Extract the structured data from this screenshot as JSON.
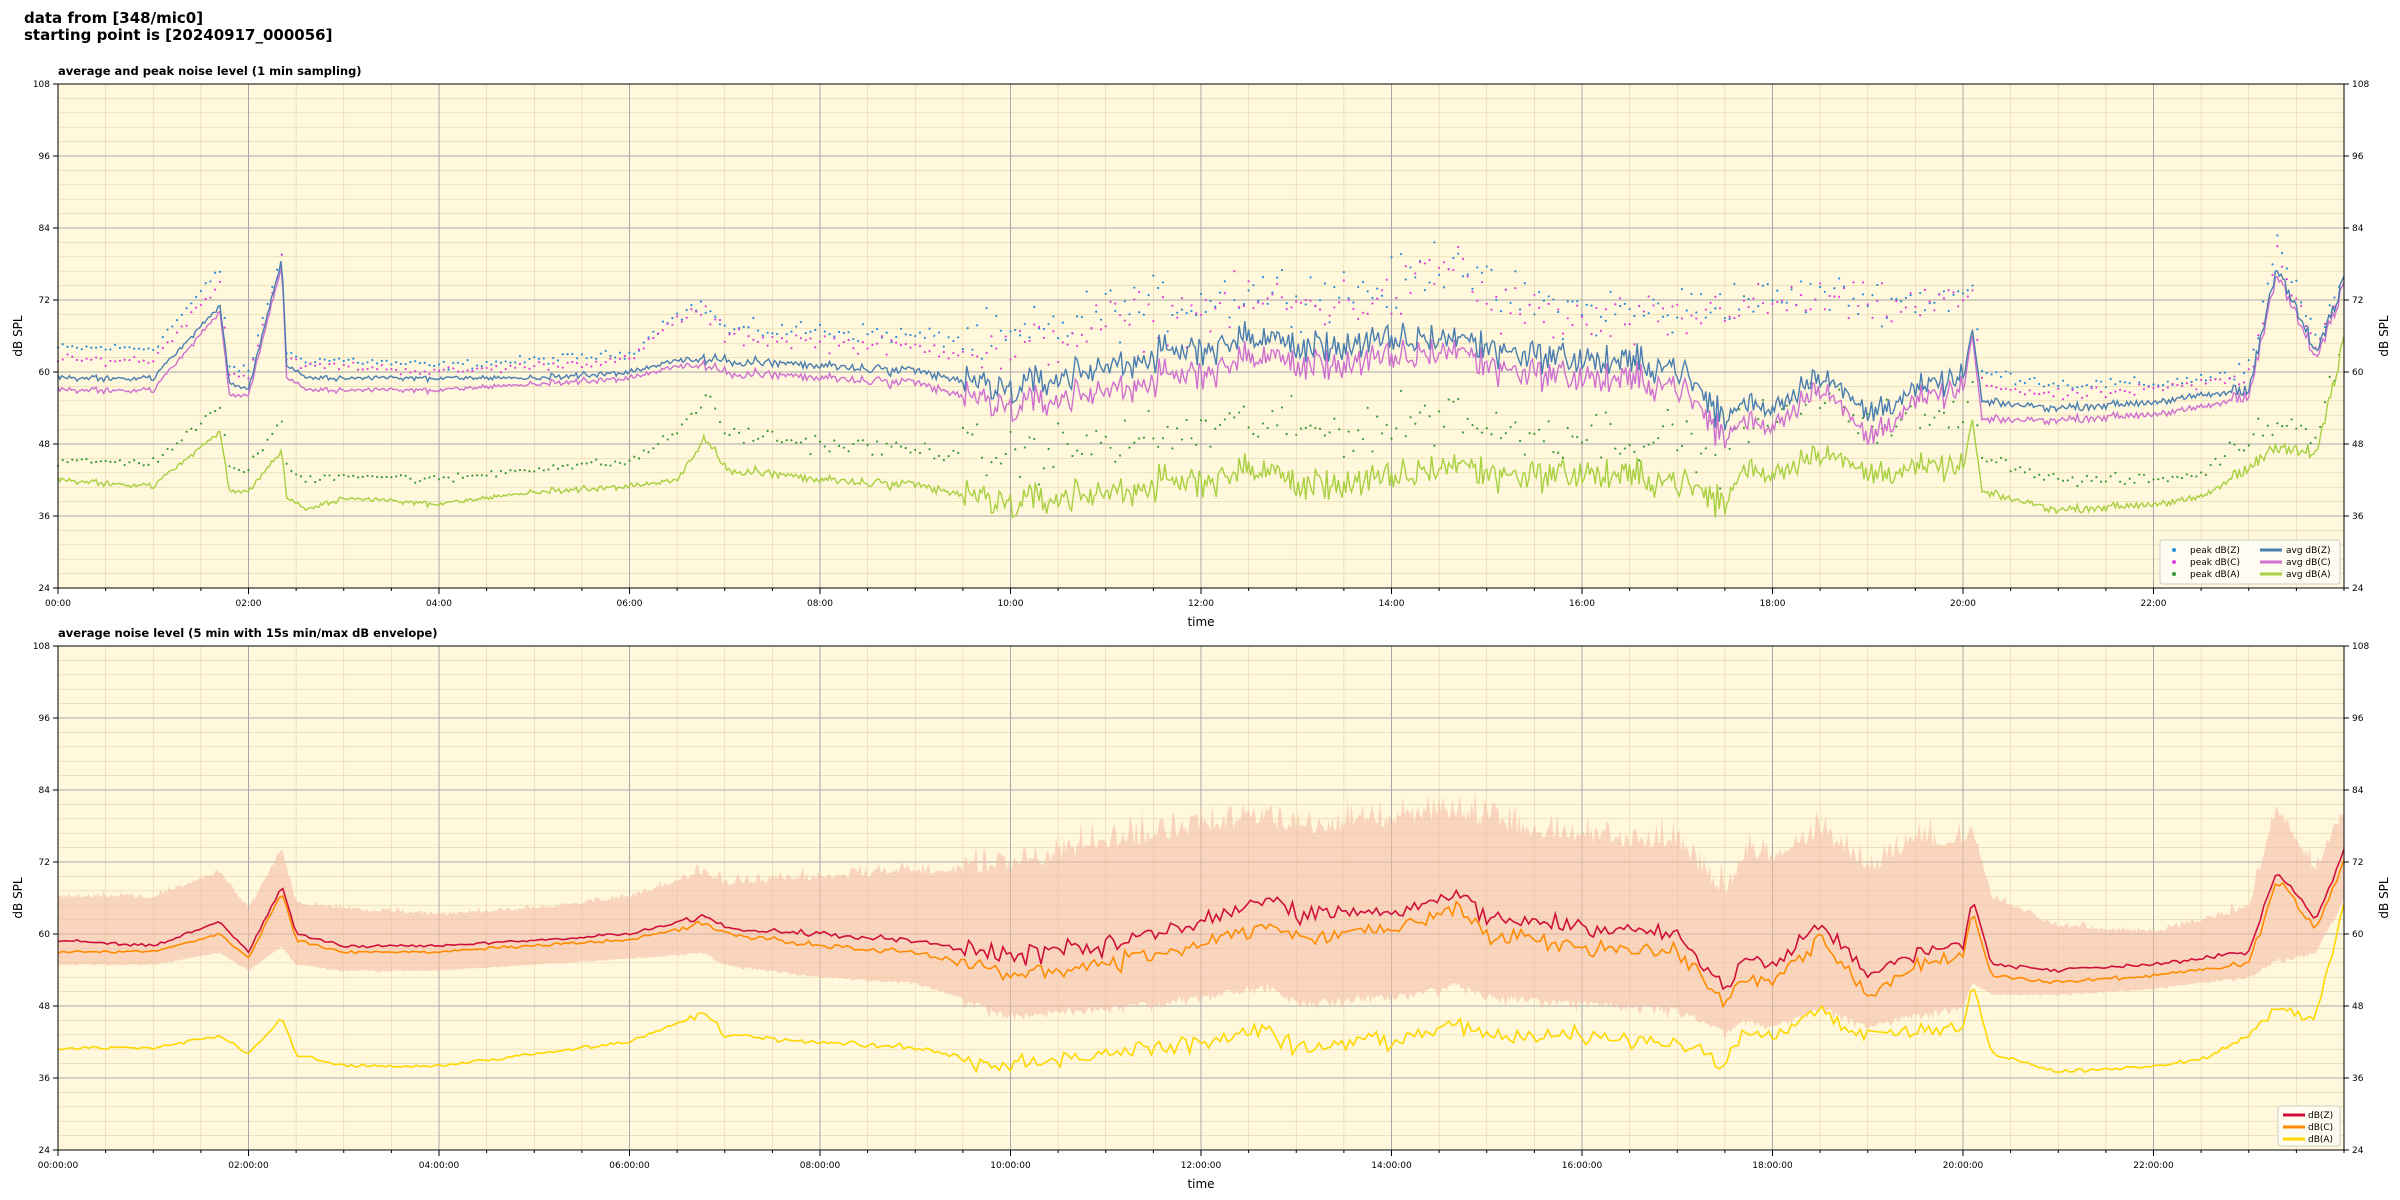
{
  "header": {
    "line1": "data from [348/mic0]",
    "line2": "starting point is [20240917_000056]"
  },
  "colors": {
    "background": "#fff8dc",
    "peak_z": "#2b8cd6",
    "peak_c": "#e040d8",
    "peak_a": "#3a9a3a",
    "avg_z": "#4a7eb0",
    "avg_c": "#d070d0",
    "avg_a": "#a8d040",
    "env_fill": "#f6b8a4",
    "db_z": "#d0103a",
    "db_c": "#ff8c00",
    "db_a": "#ffd700"
  },
  "chart_data": [
    {
      "type": "line",
      "title": "average and peak noise level (1 min sampling)",
      "xlabel": "time",
      "ylabel": "dB SPL",
      "xlim": [
        0,
        24
      ],
      "ylim": [
        24,
        108
      ],
      "yticks": [
        24,
        36,
        48,
        60,
        72,
        84,
        96,
        108
      ],
      "xticks": [
        "00:00",
        "02:00",
        "04:00",
        "06:00",
        "08:00",
        "10:00",
        "12:00",
        "14:00",
        "16:00",
        "18:00",
        "20:00",
        "22:00"
      ],
      "grid": true,
      "legend": "bottom-right, 2 columns",
      "legend_entries": [
        "peak dB(Z)",
        "peak dB(C)",
        "peak dB(A)",
        "avg dB(Z)",
        "avg dB(C)",
        "avg dB(A)"
      ],
      "keypoints": {
        "x": [
          0,
          1,
          1.7,
          1.8,
          2,
          2.35,
          2.4,
          2.6,
          3,
          4,
          5,
          6,
          6.5,
          6.8,
          7,
          8,
          9,
          10,
          11,
          12,
          12.7,
          13,
          14,
          14.7,
          15,
          16,
          17,
          17.5,
          17.7,
          18,
          18.5,
          19,
          19.5,
          20,
          20.1,
          20.2,
          21,
          22,
          22.5,
          23,
          23.3,
          23.7,
          24
        ],
        "avg_z": [
          59,
          59,
          71,
          58,
          57,
          79,
          61,
          59,
          59,
          59,
          59,
          60,
          62,
          62,
          62,
          61,
          60,
          57,
          61,
          64,
          66,
          64,
          65,
          66,
          64,
          62,
          61,
          52,
          55,
          54,
          60,
          53,
          57,
          59,
          67,
          55,
          54,
          55,
          56,
          57,
          78,
          63,
          75
        ],
        "avg_c": [
          57,
          57,
          70,
          56,
          56,
          78,
          59,
          57,
          57,
          57,
          58,
          59,
          61,
          61,
          60,
          59,
          58,
          54,
          57,
          60,
          63,
          61,
          62,
          64,
          61,
          59,
          58,
          49,
          52,
          51,
          58,
          49,
          55,
          57,
          66,
          52,
          52,
          53,
          54,
          56,
          77,
          62,
          74
        ],
        "avg_a": [
          42,
          41,
          50,
          40,
          40,
          47,
          39,
          37,
          39,
          38,
          40,
          41,
          42,
          49,
          44,
          42,
          41,
          38,
          40,
          42,
          44,
          41,
          42,
          45,
          43,
          43,
          42,
          38,
          44,
          43,
          47,
          43,
          44,
          44,
          52,
          40,
          37,
          38,
          39,
          44,
          48,
          46,
          65
        ],
        "peak_z": [
          64,
          64,
          77,
          61,
          60,
          80,
          63,
          62,
          62,
          61,
          62,
          63,
          70,
          71,
          67,
          67,
          66,
          65,
          70,
          72,
          74,
          73,
          74,
          80,
          73,
          70,
          70,
          72,
          72,
          72,
          73,
          72,
          72,
          73,
          74,
          60,
          58,
          58,
          59,
          60,
          81,
          66,
          75
        ],
        "peak_c": [
          62,
          62,
          75,
          60,
          59,
          79,
          62,
          61,
          61,
          60,
          61,
          62,
          69,
          70,
          66,
          65,
          64,
          63,
          68,
          70,
          72,
          71,
          72,
          79,
          71,
          68,
          68,
          71,
          71,
          71,
          72,
          71,
          71,
          72,
          73,
          58,
          56,
          57,
          58,
          59,
          80,
          65,
          74
        ],
        "peak_a": [
          45,
          45,
          54,
          44,
          44,
          52,
          44,
          42,
          43,
          42,
          44,
          45,
          50,
          56,
          50,
          48,
          47,
          46,
          48,
          50,
          52,
          50,
          51,
          54,
          50,
          50,
          49,
          46,
          52,
          52,
          56,
          52,
          52,
          52,
          58,
          46,
          42,
          42,
          43,
          49,
          52,
          50,
          66
        ]
      }
    },
    {
      "type": "line",
      "title": "average noise level (5 min with 15s min/max dB envelope)",
      "xlabel": "time",
      "ylabel": "dB SPL",
      "xlim": [
        0,
        24
      ],
      "ylim": [
        24,
        108
      ],
      "yticks": [
        24,
        36,
        48,
        60,
        72,
        84,
        96,
        108
      ],
      "xticks": [
        "00:00:00",
        "02:00:00",
        "04:00:00",
        "06:00:00",
        "08:00:00",
        "10:00:00",
        "12:00:00",
        "14:00:00",
        "16:00:00",
        "18:00:00",
        "20:00:00",
        "22:00:00"
      ],
      "grid": true,
      "legend": "bottom-right",
      "legend_entries": [
        "dB(Z)",
        "dB(C)",
        "dB(A)"
      ],
      "keypoints": {
        "x": [
          0,
          1,
          1.7,
          2,
          2.35,
          2.5,
          3,
          4,
          5,
          6,
          6.8,
          7,
          8,
          9,
          10,
          11,
          12,
          12.7,
          13,
          14,
          14.7,
          15,
          16,
          17,
          17.5,
          17.7,
          18,
          18.5,
          19,
          19.5,
          20,
          20.1,
          20.3,
          21,
          22,
          22.5,
          23,
          23.3,
          23.7,
          24
        ],
        "db_z": [
          59,
          58,
          62,
          57,
          68,
          60,
          58,
          58,
          59,
          60,
          63,
          61,
          60,
          59,
          56,
          58,
          62,
          66,
          63,
          64,
          67,
          63,
          61,
          60,
          50,
          56,
          55,
          62,
          53,
          57,
          58,
          66,
          55,
          54,
          55,
          56,
          57,
          71,
          62,
          74
        ],
        "db_c": [
          57,
          57,
          60,
          56,
          67,
          59,
          57,
          57,
          58,
          59,
          62,
          60,
          58,
          57,
          53,
          55,
          58,
          62,
          59,
          61,
          64,
          60,
          58,
          57,
          48,
          53,
          52,
          59,
          50,
          55,
          56,
          64,
          53,
          52,
          53,
          54,
          55,
          69,
          61,
          72
        ],
        "db_a": [
          41,
          41,
          43,
          40,
          46,
          40,
          38,
          38,
          40,
          42,
          47,
          43,
          42,
          41,
          38,
          40,
          42,
          44,
          41,
          42,
          45,
          43,
          43,
          42,
          38,
          44,
          43,
          47,
          43,
          44,
          44,
          52,
          40,
          37,
          38,
          39,
          43,
          48,
          46,
          65
        ],
        "env_max": [
          66,
          66,
          70,
          64,
          74,
          65,
          64,
          63,
          64,
          66,
          70,
          68,
          69,
          70,
          70,
          74,
          76,
          78,
          76,
          78,
          79,
          77,
          75,
          74,
          66,
          72,
          72,
          76,
          70,
          74,
          75,
          77,
          66,
          61,
          60,
          62,
          64,
          80,
          70,
          80
        ],
        "env_min": [
          55,
          55,
          57,
          54,
          58,
          55,
          54,
          54,
          55,
          56,
          57,
          55,
          53,
          52,
          47,
          48,
          50,
          52,
          49,
          50,
          52,
          50,
          49,
          48,
          44,
          46,
          45,
          48,
          45,
          47,
          48,
          52,
          50,
          50,
          51,
          52,
          53,
          56,
          57,
          66
        ]
      }
    }
  ]
}
